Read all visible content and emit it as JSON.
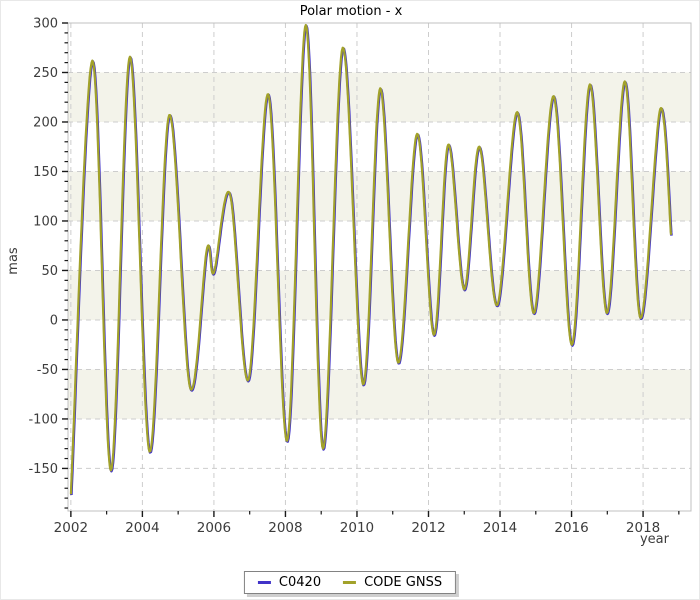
{
  "title": "Polar motion - x",
  "colors": {
    "background": "#ffffff",
    "band": "#f3f3ea",
    "grid": "#cdcdcd",
    "frame": "#c0c0c0",
    "tick": "#1a1a1a",
    "text": "#3c3c3c"
  },
  "axes": {
    "x": {
      "label": "year",
      "min": 2001.92,
      "max": 2019.34,
      "major_ticks": [
        2002,
        2004,
        2006,
        2008,
        2010,
        2012,
        2014,
        2016,
        2018
      ],
      "minor_ticks": [
        2003,
        2005,
        2007,
        2009,
        2011,
        2013,
        2015,
        2017,
        2019
      ]
    },
    "y": {
      "label": "mas",
      "min": -193,
      "max": 300,
      "major_ticks": [
        300,
        250,
        200,
        150,
        100,
        50,
        0,
        -50,
        -100,
        -150
      ],
      "minor_step": 10
    }
  },
  "bands": {
    "color": "#f3f3ea",
    "intervals": [
      [
        250,
        200
      ],
      [
        150,
        100
      ],
      [
        50,
        0
      ],
      [
        -50,
        -100
      ]
    ]
  },
  "legend": {
    "position": "bottom-center"
  },
  "chart_data": {
    "type": "line",
    "title": "Polar motion - x",
    "xlabel": "year",
    "ylabel": "mas",
    "xlim": [
      2001.92,
      2019.34
    ],
    "ylim": [
      -193,
      300
    ],
    "grid": "dashed major, alternating 50-mas shaded bands",
    "legend_position": "bottom-center",
    "note": "Two series overlap almost exactly; C0420 is drawn beneath CODE GNSS. Points below are peak/trough control values read from the plot (year, mas).",
    "points": [
      [
        2002.0,
        -176
      ],
      [
        2002.6,
        262
      ],
      [
        2003.12,
        -152
      ],
      [
        2003.65,
        266
      ],
      [
        2004.2,
        -133
      ],
      [
        2004.75,
        207
      ],
      [
        2005.33,
        -68
      ],
      [
        2005.8,
        71
      ],
      [
        2006.0,
        48
      ],
      [
        2006.45,
        127
      ],
      [
        2006.97,
        -60
      ],
      [
        2007.52,
        228
      ],
      [
        2008.05,
        -122
      ],
      [
        2008.57,
        298
      ],
      [
        2009.05,
        -130
      ],
      [
        2009.6,
        275
      ],
      [
        2010.17,
        -65
      ],
      [
        2010.65,
        234
      ],
      [
        2011.15,
        -43
      ],
      [
        2011.68,
        188
      ],
      [
        2012.15,
        -15
      ],
      [
        2012.55,
        177
      ],
      [
        2013.0,
        31
      ],
      [
        2013.42,
        175
      ],
      [
        2013.92,
        15
      ],
      [
        2014.48,
        210
      ],
      [
        2014.95,
        7
      ],
      [
        2015.5,
        226
      ],
      [
        2016.01,
        -25
      ],
      [
        2016.51,
        238
      ],
      [
        2016.99,
        7
      ],
      [
        2017.49,
        241
      ],
      [
        2017.93,
        2
      ],
      [
        2018.48,
        213
      ],
      [
        2018.78,
        86
      ]
    ],
    "series": [
      {
        "name": "C0420",
        "color": "#4133c8"
      },
      {
        "name": "CODE GNSS",
        "color": "#a2a22a"
      }
    ]
  }
}
